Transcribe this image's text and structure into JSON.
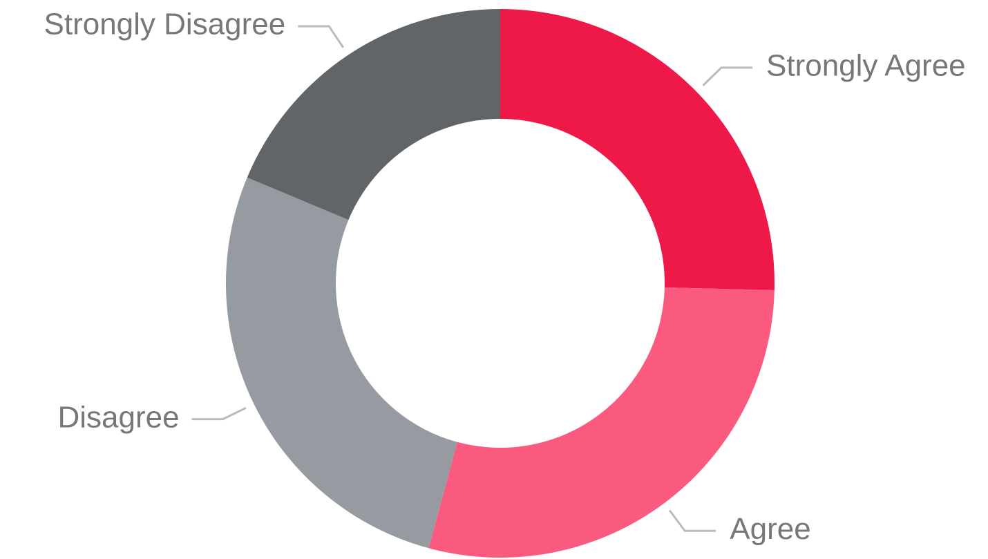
{
  "chart_data": {
    "type": "donut",
    "categories": [
      "Strongly Agree",
      "Agree",
      "Disagree",
      "Strongly Disagree"
    ],
    "values": [
      25.4,
      28.8,
      27.1,
      18.7
    ],
    "colors": [
      "#ee1849",
      "#f95a7e",
      "#959ba0",
      "#616568"
    ]
  }
}
